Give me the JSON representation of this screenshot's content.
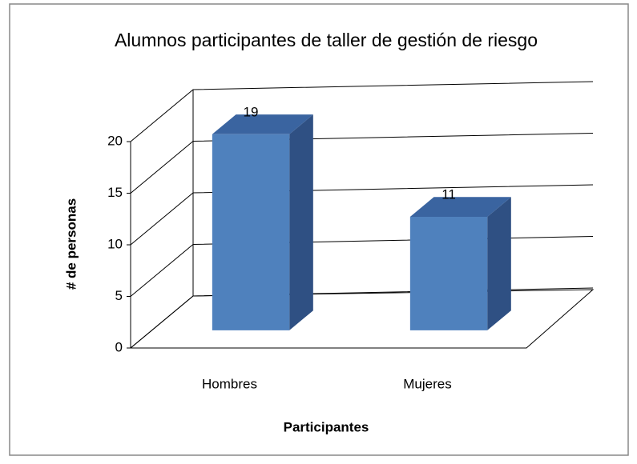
{
  "chart_data": {
    "type": "bar",
    "title": "Alumnos participantes de taller de gestión de riesgo",
    "categories": [
      "Hombres",
      "Mujeres"
    ],
    "values": [
      19,
      11
    ],
    "color": "#4f81bd",
    "xlabel": "Participantes",
    "ylabel": "# de personas",
    "ylim": [
      0,
      20
    ],
    "yticks": [
      0,
      5,
      10,
      15,
      20
    ],
    "grid": true
  }
}
